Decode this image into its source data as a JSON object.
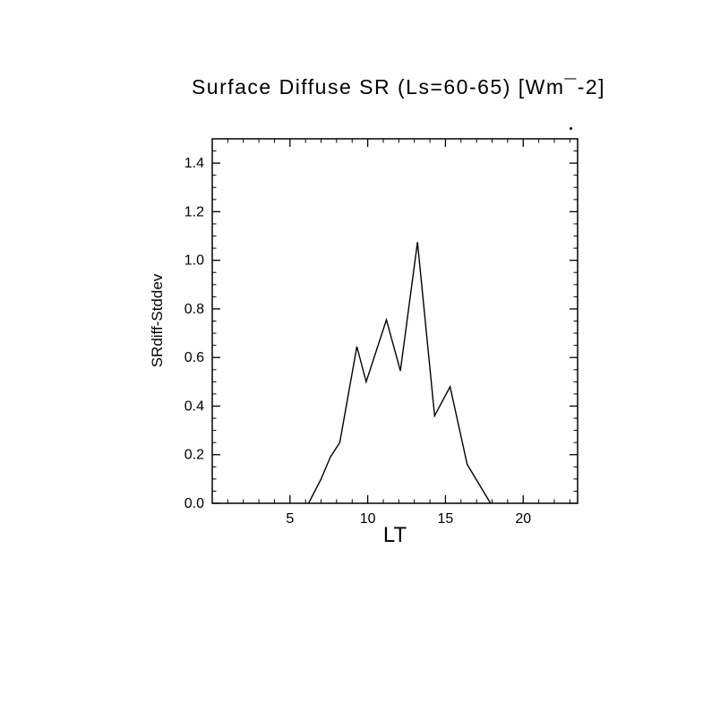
{
  "chart_data": {
    "type": "line",
    "title": "Surface Diffuse SR (Ls=60-65) [Wm¯-2]",
    "xlabel": "LT",
    "ylabel": "SRdiff-Stddev",
    "xlim": [
      0,
      23.5
    ],
    "ylim": [
      0,
      1.5
    ],
    "x_major_ticks": [
      5,
      10,
      15,
      20
    ],
    "x_tick_labels": [
      "5",
      "10",
      "15",
      "20"
    ],
    "x_minor_step": 1,
    "y_major_ticks": [
      0.0,
      0.2,
      0.4,
      0.6,
      0.8,
      1.0,
      1.2,
      1.4
    ],
    "y_tick_labels": [
      "0.0",
      "0.2",
      "0.4",
      "0.6",
      "0.8",
      "1.0",
      "1.2",
      "1.4"
    ],
    "y_minor_step": 0.05,
    "grid": false,
    "legend": "none",
    "axis_color": "#000000",
    "line_color": "#000000",
    "background_color": "#ffffff",
    "series": [
      {
        "name": "SRdiff-Stddev",
        "x": [
          6.2,
          7.0,
          7.6,
          8.2,
          9.3,
          9.9,
          11.2,
          12.1,
          13.2,
          14.3,
          15.3,
          16.4,
          17.9
        ],
        "y": [
          0.0,
          0.1,
          0.19,
          0.25,
          0.645,
          0.5,
          0.755,
          0.545,
          1.075,
          0.36,
          0.48,
          0.16,
          0.0
        ]
      }
    ]
  }
}
